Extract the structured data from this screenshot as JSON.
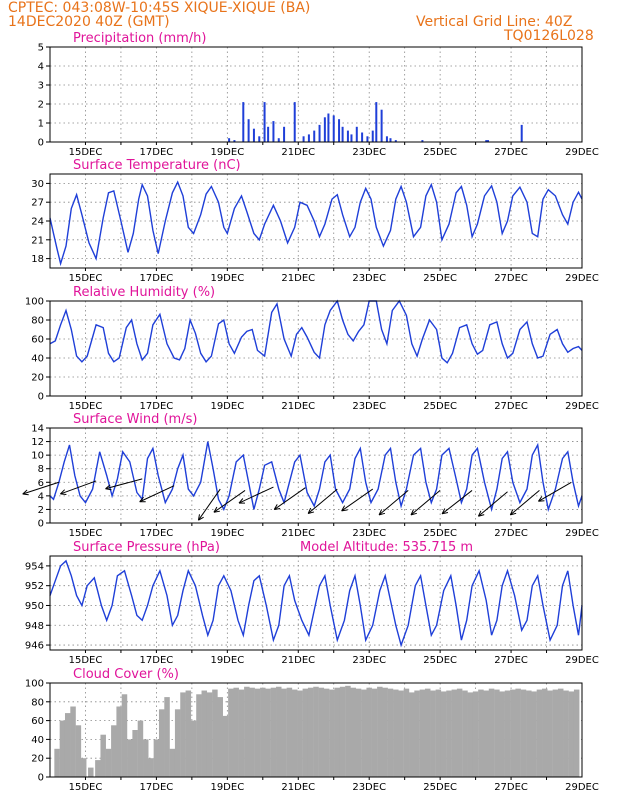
{
  "header": {
    "line1": "CPTEC:    043:08W-10:45S   XIQUE-XIQUE (BA)",
    "line2": "14DEC2020 40Z (GMT)",
    "grid_note": "Vertical Grid Line: 40Z",
    "code": "TQ0126L028"
  },
  "x_labels": [
    "15DEC",
    "17DEC",
    "19DEC",
    "21DEC",
    "23DEC",
    "25DEC",
    "27DEC",
    "29DEC"
  ],
  "model_altitude": "Model Altitude: 535.715 m",
  "colors": {
    "line": "#1f3fd8",
    "bar": "#1f3fd8",
    "cloud": "#a9a9a9",
    "title": "#e0149a",
    "header": "#e8731a"
  },
  "chart_data": [
    {
      "type": "bar",
      "title": "Precipitation (mm/h)",
      "xlabel": "",
      "ylabel": "",
      "ylim": [
        0,
        5
      ],
      "yticks": [
        "0",
        "1",
        "2",
        "3",
        "4",
        "5"
      ],
      "x": [
        5.05,
        5.2,
        5.45,
        5.6,
        5.75,
        5.9,
        6.05,
        6.15,
        6.3,
        6.45,
        6.6,
        6.9,
        7.15,
        7.3,
        7.45,
        7.6,
        7.75,
        7.85,
        8.0,
        8.15,
        8.25,
        8.4,
        8.5,
        8.65,
        8.8,
        8.95,
        9.1,
        9.2,
        9.35,
        9.5,
        9.6,
        9.75,
        10.5,
        12.3,
        12.35,
        13.3
      ],
      "values": [
        0.2,
        0.1,
        2.1,
        1.2,
        0.7,
        0.3,
        2.1,
        0.8,
        1.1,
        0.2,
        0.8,
        2.1,
        0.3,
        0.4,
        0.6,
        0.9,
        1.3,
        1.5,
        1.4,
        1.2,
        0.8,
        0.6,
        0.4,
        0.8,
        0.5,
        0.3,
        0.6,
        2.1,
        1.7,
        0.3,
        0.2,
        0.1,
        0.1,
        0.1,
        0.1,
        0.9
      ]
    },
    {
      "type": "line",
      "title": "Surface Temperature (nC)",
      "ylim": [
        16.5,
        31.5
      ],
      "yticks": [
        "18",
        "21",
        "24",
        "27",
        "30"
      ],
      "x": [
        0,
        0.1,
        0.2,
        0.3,
        0.45,
        0.6,
        0.75,
        0.9,
        1.1,
        1.3,
        1.5,
        1.65,
        1.8,
        2.0,
        2.2,
        2.35,
        2.5,
        2.6,
        2.75,
        2.9,
        3.05,
        3.25,
        3.45,
        3.6,
        3.75,
        3.9,
        4.05,
        4.25,
        4.4,
        4.55,
        4.75,
        4.9,
        5.0,
        5.2,
        5.4,
        5.55,
        5.75,
        5.9,
        6.05,
        6.3,
        6.5,
        6.7,
        6.9,
        7.05,
        7.25,
        7.45,
        7.6,
        7.75,
        7.95,
        8.1,
        8.25,
        8.45,
        8.6,
        8.75,
        8.9,
        9.05,
        9.2,
        9.4,
        9.6,
        9.75,
        9.9,
        10.05,
        10.25,
        10.45,
        10.6,
        10.75,
        10.9,
        11.05,
        11.25,
        11.45,
        11.6,
        11.75,
        11.9,
        12.05,
        12.25,
        12.45,
        12.6,
        12.75,
        12.9,
        13.05,
        13.25,
        13.45,
        13.6,
        13.75,
        13.9,
        14.05,
        14.25,
        14.45,
        14.6,
        14.75,
        14.9,
        15.0
      ],
      "values": [
        24.5,
        22,
        19.5,
        17.2,
        20,
        26,
        28.2,
        25,
        20.5,
        18,
        24.5,
        28.5,
        28.8,
        24,
        19,
        22,
        27.5,
        29.8,
        28,
        22.5,
        18.8,
        24,
        28.5,
        30.2,
        28,
        23,
        22,
        25,
        28.3,
        29.5,
        27,
        23,
        22,
        26,
        28,
        25.5,
        22,
        21,
        23.5,
        26.5,
        24,
        20.5,
        23,
        27,
        26.5,
        24,
        21.5,
        23.5,
        27.5,
        28.2,
        25,
        21.5,
        23,
        27,
        29.2,
        27.5,
        23,
        20,
        22.5,
        27.5,
        29.5,
        27,
        21.5,
        23,
        28,
        29.8,
        27,
        21,
        23.5,
        28.5,
        29.5,
        26.5,
        21.5,
        23.5,
        28,
        29.6,
        27,
        22,
        24,
        28,
        29.4,
        27,
        22,
        21.5,
        27.5,
        29,
        28,
        25,
        23.5,
        27,
        28.6,
        27.5
      ]
    },
    {
      "type": "line",
      "title": "Relative Humidity (%)",
      "ylim": [
        0,
        100
      ],
      "yticks": [
        "0",
        "20",
        "40",
        "60",
        "80",
        "100"
      ],
      "x": [
        0,
        0.15,
        0.3,
        0.45,
        0.6,
        0.75,
        0.9,
        1.05,
        1.3,
        1.5,
        1.65,
        1.8,
        1.95,
        2.15,
        2.3,
        2.45,
        2.6,
        2.75,
        2.9,
        3.1,
        3.3,
        3.5,
        3.65,
        3.8,
        3.95,
        4.1,
        4.25,
        4.4,
        4.55,
        4.75,
        4.9,
        5.05,
        5.2,
        5.4,
        5.55,
        5.7,
        5.85,
        6.05,
        6.25,
        6.4,
        6.6,
        6.8,
        6.95,
        7.1,
        7.25,
        7.45,
        7.6,
        7.75,
        7.9,
        8.1,
        8.25,
        8.4,
        8.55,
        8.7,
        8.85,
        9.0,
        9.2,
        9.35,
        9.5,
        9.65,
        9.85,
        10.05,
        10.2,
        10.35,
        10.5,
        10.7,
        10.9,
        11.05,
        11.2,
        11.35,
        11.55,
        11.75,
        11.9,
        12.05,
        12.2,
        12.4,
        12.6,
        12.75,
        12.9,
        13.05,
        13.25,
        13.45,
        13.6,
        13.75,
        13.9,
        14.1,
        14.3,
        14.45,
        14.6,
        14.75,
        14.9,
        15.0
      ],
      "values": [
        55,
        58,
        75,
        90,
        70,
        42,
        36,
        42,
        75,
        72,
        45,
        36,
        40,
        72,
        80,
        55,
        38,
        45,
        75,
        86,
        55,
        40,
        38,
        50,
        80,
        66,
        45,
        36,
        42,
        76,
        80,
        55,
        45,
        62,
        68,
        70,
        48,
        42,
        88,
        97,
        60,
        42,
        65,
        72,
        62,
        46,
        40,
        75,
        90,
        100,
        80,
        65,
        58,
        68,
        75,
        100,
        100,
        70,
        55,
        90,
        100,
        85,
        55,
        42,
        60,
        80,
        70,
        40,
        35,
        45,
        72,
        75,
        55,
        44,
        48,
        75,
        78,
        55,
        40,
        45,
        70,
        78,
        55,
        40,
        42,
        65,
        70,
        55,
        46,
        50,
        52,
        48
      ]
    },
    {
      "type": "line",
      "title": "Surface Wind (m/s)",
      "ylim": [
        0,
        14
      ],
      "yticks": [
        "0",
        "2",
        "4",
        "6",
        "8",
        "10",
        "12",
        "14"
      ],
      "x": [
        0,
        0.1,
        0.25,
        0.4,
        0.55,
        0.7,
        0.85,
        1.0,
        1.2,
        1.4,
        1.6,
        1.75,
        1.9,
        2.05,
        2.25,
        2.45,
        2.6,
        2.75,
        2.9,
        3.05,
        3.25,
        3.45,
        3.6,
        3.75,
        3.9,
        4.05,
        4.25,
        4.45,
        4.6,
        4.75,
        4.9,
        5.05,
        5.25,
        5.45,
        5.6,
        5.75,
        5.9,
        6.05,
        6.25,
        6.45,
        6.6,
        6.75,
        6.9,
        7.05,
        7.25,
        7.45,
        7.6,
        7.75,
        7.9,
        8.05,
        8.25,
        8.45,
        8.6,
        8.75,
        8.9,
        9.05,
        9.25,
        9.45,
        9.6,
        9.75,
        9.9,
        10.05,
        10.25,
        10.45,
        10.6,
        10.75,
        10.9,
        11.05,
        11.25,
        11.45,
        11.6,
        11.75,
        11.9,
        12.05,
        12.25,
        12.45,
        12.6,
        12.75,
        12.9,
        13.05,
        13.25,
        13.45,
        13.6,
        13.75,
        13.9,
        14.05,
        14.25,
        14.45,
        14.6,
        14.75,
        14.9,
        15.0
      ],
      "values": [
        4,
        3.5,
        6,
        9,
        11.5,
        7,
        4,
        3,
        5,
        10.5,
        7,
        4,
        6.5,
        10.5,
        9,
        4.5,
        3.5,
        9.5,
        11,
        7,
        3,
        5,
        8,
        10,
        5,
        4,
        6,
        12,
        8,
        3.5,
        2,
        4,
        9,
        10,
        6,
        2,
        5,
        8.5,
        9,
        5,
        3,
        6,
        9,
        10,
        4.5,
        2.5,
        5,
        9,
        10,
        5,
        3,
        5,
        9.5,
        11,
        6,
        3,
        5,
        10,
        11,
        6,
        2.5,
        5,
        10,
        11,
        6,
        3,
        5,
        10,
        11,
        6.5,
        3,
        5,
        10,
        11,
        6,
        2,
        5,
        9.5,
        10.5,
        6,
        3,
        5,
        10,
        11.5,
        6,
        2,
        5,
        9.5,
        10.5,
        6,
        2.5,
        4
      ]
    },
    {
      "type": "line",
      "title": "Surface Pressure (hPa)",
      "ylim": [
        945.5,
        955
      ],
      "yticks": [
        "946",
        "948",
        "950",
        "952",
        "954"
      ],
      "x": [
        0,
        0.15,
        0.3,
        0.45,
        0.6,
        0.75,
        0.9,
        1.05,
        1.25,
        1.45,
        1.6,
        1.75,
        1.9,
        2.1,
        2.3,
        2.45,
        2.6,
        2.75,
        2.9,
        3.1,
        3.3,
        3.45,
        3.6,
        3.75,
        3.9,
        4.1,
        4.3,
        4.45,
        4.6,
        4.75,
        4.9,
        5.1,
        5.3,
        5.45,
        5.6,
        5.75,
        5.9,
        6.1,
        6.3,
        6.45,
        6.6,
        6.75,
        6.9,
        7.1,
        7.3,
        7.45,
        7.6,
        7.75,
        7.9,
        8.1,
        8.3,
        8.45,
        8.6,
        8.75,
        8.9,
        9.1,
        9.3,
        9.45,
        9.6,
        9.75,
        9.9,
        10.1,
        10.3,
        10.45,
        10.6,
        10.75,
        10.9,
        11.1,
        11.3,
        11.45,
        11.6,
        11.75,
        11.9,
        12.1,
        12.3,
        12.45,
        12.6,
        12.75,
        12.9,
        13.1,
        13.3,
        13.45,
        13.6,
        13.75,
        13.9,
        14.1,
        14.3,
        14.45,
        14.6,
        14.75,
        14.9,
        15.0
      ],
      "values": [
        951,
        952.5,
        954,
        954.5,
        953,
        951,
        950,
        952,
        952.8,
        950,
        948.5,
        950,
        953,
        953.5,
        951,
        949,
        948.5,
        950,
        952,
        953.5,
        951,
        948,
        949,
        951.5,
        953.5,
        952,
        949,
        947,
        948.5,
        952,
        953,
        951.5,
        948.5,
        947,
        950,
        952.5,
        953,
        950,
        946.5,
        948,
        952,
        953,
        950.5,
        948.5,
        947,
        949.5,
        952,
        953,
        950,
        946.5,
        948.5,
        951.5,
        953,
        950,
        946.5,
        948,
        951.5,
        953,
        950.5,
        948,
        946,
        948,
        952,
        953,
        950,
        947,
        948,
        951.5,
        953,
        950,
        946.5,
        948.5,
        952,
        953.5,
        950.5,
        947,
        948.5,
        952,
        953.5,
        951,
        947.5,
        948.5,
        952,
        953,
        950,
        946.5,
        948,
        952,
        953.5,
        950,
        947,
        950
      ]
    },
    {
      "type": "bar",
      "title": "Cloud Cover (%)",
      "ylim": [
        0,
        100
      ],
      "yticks": [
        "0",
        "20",
        "40",
        "60",
        "80",
        "100"
      ],
      "x": [
        0.2,
        0.35,
        0.5,
        0.65,
        0.8,
        0.95,
        1.15,
        1.35,
        1.5,
        1.65,
        1.8,
        1.95,
        2.1,
        2.25,
        2.4,
        2.55,
        2.7,
        2.85,
        3.0,
        3.15,
        3.3,
        3.45,
        3.6,
        3.75,
        3.9,
        4.05,
        4.2,
        4.35,
        4.5,
        4.65,
        4.8,
        4.95,
        5.1,
        5.25,
        5.4,
        5.55,
        5.7,
        5.85,
        6.0,
        6.15,
        6.3,
        6.45,
        6.6,
        6.75,
        6.9,
        7.05,
        7.2,
        7.35,
        7.5,
        7.65,
        7.8,
        7.95,
        8.1,
        8.25,
        8.4,
        8.55,
        8.7,
        8.85,
        9.0,
        9.15,
        9.3,
        9.45,
        9.6,
        9.75,
        9.9,
        10.05,
        10.2,
        10.35,
        10.5,
        10.65,
        10.8,
        10.95,
        11.1,
        11.25,
        11.4,
        11.55,
        11.7,
        11.85,
        12.0,
        12.15,
        12.3,
        12.45,
        12.6,
        12.75,
        12.9,
        13.05,
        13.2,
        13.35,
        13.5,
        13.65,
        13.8,
        13.95,
        14.1,
        14.25,
        14.4,
        14.55,
        14.7,
        14.85
      ],
      "values": [
        30,
        60,
        68,
        75,
        55,
        20,
        10,
        18,
        45,
        30,
        55,
        75,
        88,
        40,
        50,
        60,
        40,
        20,
        40,
        72,
        85,
        30,
        72,
        90,
        92,
        60,
        88,
        92,
        90,
        93,
        85,
        65,
        94,
        95,
        93,
        96,
        95,
        94,
        95,
        94,
        95,
        96,
        94,
        95,
        93,
        92,
        94,
        95,
        96,
        95,
        94,
        93,
        95,
        96,
        97,
        95,
        94,
        93,
        95,
        94,
        96,
        95,
        94,
        93,
        92,
        94,
        90,
        92,
        93,
        94,
        92,
        93,
        91,
        92,
        93,
        94,
        92,
        90,
        91,
        93,
        92,
        94,
        93,
        91,
        92,
        93,
        94,
        93,
        92,
        91,
        93,
        94,
        92,
        93,
        94,
        92,
        91,
        93
      ]
    }
  ],
  "wind_arrows": [
    {
      "x": 0.25,
      "y": 6.0,
      "a": 198
    },
    {
      "x": 1.3,
      "y": 6.2,
      "a": 200
    },
    {
      "x": 2.6,
      "y": 6.5,
      "a": 195
    },
    {
      "x": 3.5,
      "y": 5.5,
      "a": 205
    },
    {
      "x": 4.8,
      "y": 5.0,
      "a": 235
    },
    {
      "x": 5.5,
      "y": 4.8,
      "a": 215
    },
    {
      "x": 6.3,
      "y": 5.3,
      "a": 205
    },
    {
      "x": 7.2,
      "y": 5.2,
      "a": 215
    },
    {
      "x": 8.1,
      "y": 5.0,
      "a": 220
    },
    {
      "x": 9.1,
      "y": 5.0,
      "a": 215
    },
    {
      "x": 10.1,
      "y": 4.8,
      "a": 220
    },
    {
      "x": 11.0,
      "y": 4.8,
      "a": 220
    },
    {
      "x": 11.9,
      "y": 4.8,
      "a": 218
    },
    {
      "x": 12.9,
      "y": 4.6,
      "a": 220
    },
    {
      "x": 13.8,
      "y": 4.8,
      "a": 220
    },
    {
      "x": 14.7,
      "y": 6.0,
      "a": 210
    }
  ]
}
